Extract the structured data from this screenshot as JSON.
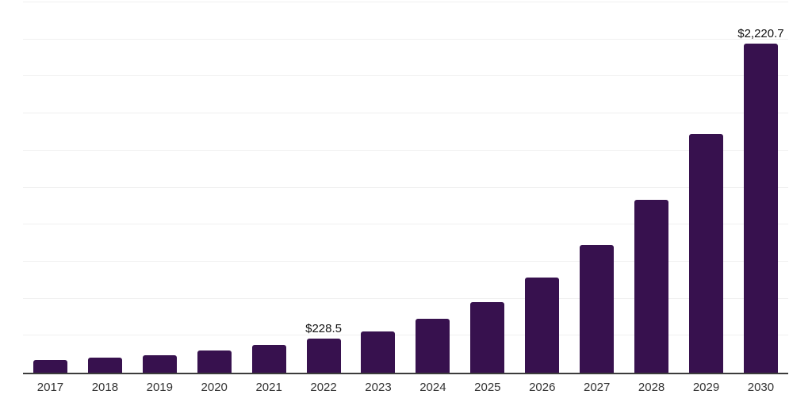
{
  "chart_data": {
    "type": "bar",
    "title": "",
    "categories": [
      "2017",
      "2018",
      "2019",
      "2020",
      "2021",
      "2022",
      "2023",
      "2024",
      "2025",
      "2026",
      "2027",
      "2028",
      "2029",
      "2030"
    ],
    "values": [
      87,
      103,
      119,
      149,
      185,
      228.5,
      278,
      362,
      477,
      642,
      860,
      1166,
      1610,
      2220.7
    ],
    "data_labels": {
      "2022": "$228.5",
      "2030": "$2,220.7"
    },
    "ylim": [
      0,
      2500
    ],
    "gridline_step": 250,
    "grid": true,
    "legend_position": "none",
    "y_axis_tick_labels_visible": false,
    "colors": {
      "bar": "#37114E",
      "axis_line": "#3c3c3c",
      "gridline": "#f0f0f0",
      "data_label": "#111111",
      "tick_label": "#333333",
      "background": "#ffffff"
    }
  }
}
